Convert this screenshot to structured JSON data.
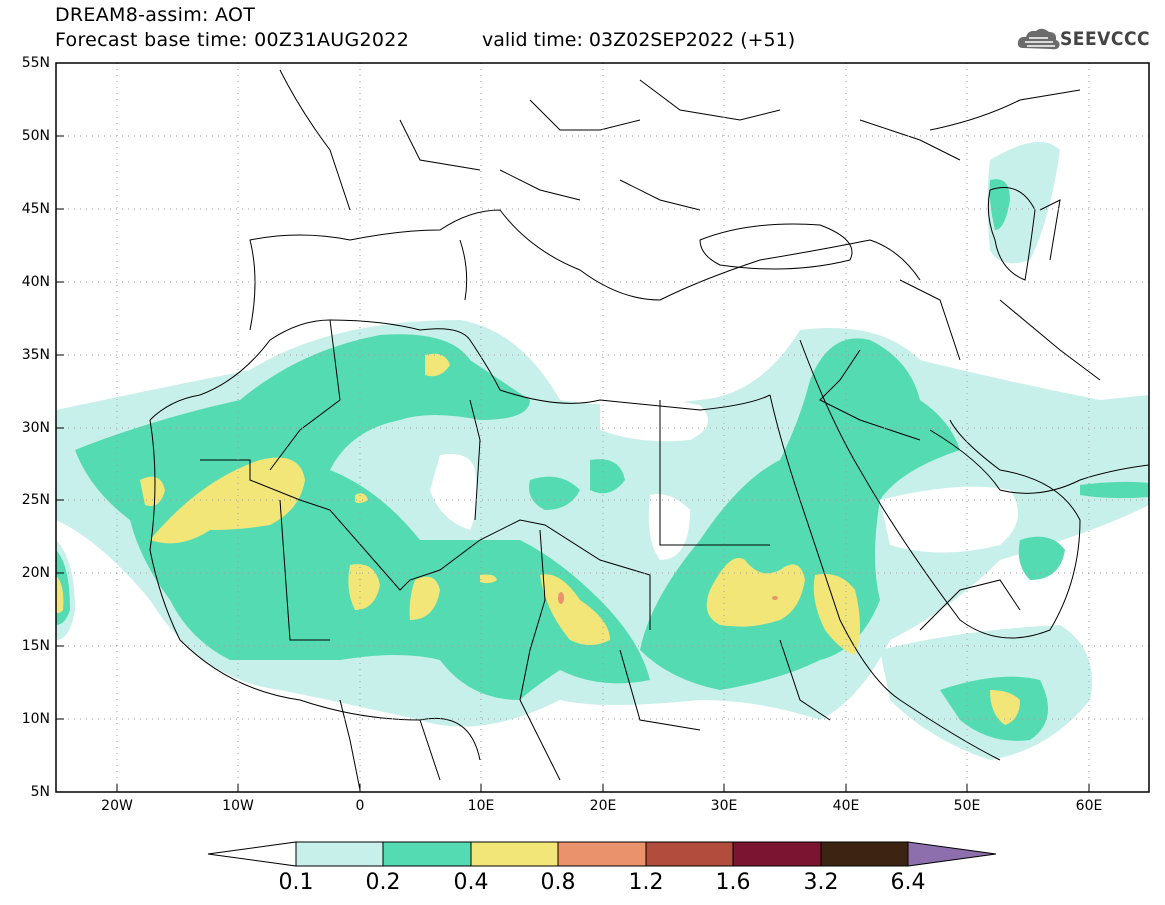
{
  "title": {
    "line1": "DREAM8-assim: AOT",
    "line2": "Forecast base time: 00Z31AUG2022",
    "valid": "valid time: 03Z02SEP2022 (+51)"
  },
  "logo": {
    "text": "SEEVCCC",
    "icon": "cloud-logo-icon"
  },
  "map": {
    "lat_ticks": [
      "55N",
      "50N",
      "45N",
      "40N",
      "35N",
      "30N",
      "25N",
      "20N",
      "15N",
      "10N",
      "5N"
    ],
    "lon_ticks": [
      "20W",
      "10W",
      "0",
      "10E",
      "20E",
      "30E",
      "40E",
      "50E",
      "60E"
    ],
    "lat_range": [
      5,
      55
    ],
    "lon_range": [
      -25,
      65
    ]
  },
  "colorbar": {
    "labels": [
      "0.1",
      "0.2",
      "0.4",
      "0.8",
      "1.2",
      "1.6",
      "3.2",
      "6.4"
    ],
    "colors": {
      "c1": "#c8f0ea",
      "c2": "#55dbb2",
      "c3": "#f2e678",
      "c4": "#e9926b",
      "c5": "#b24c3c",
      "c6": "#7a1430",
      "c7": "#3d2412",
      "c8": "#8e6fae"
    }
  }
}
